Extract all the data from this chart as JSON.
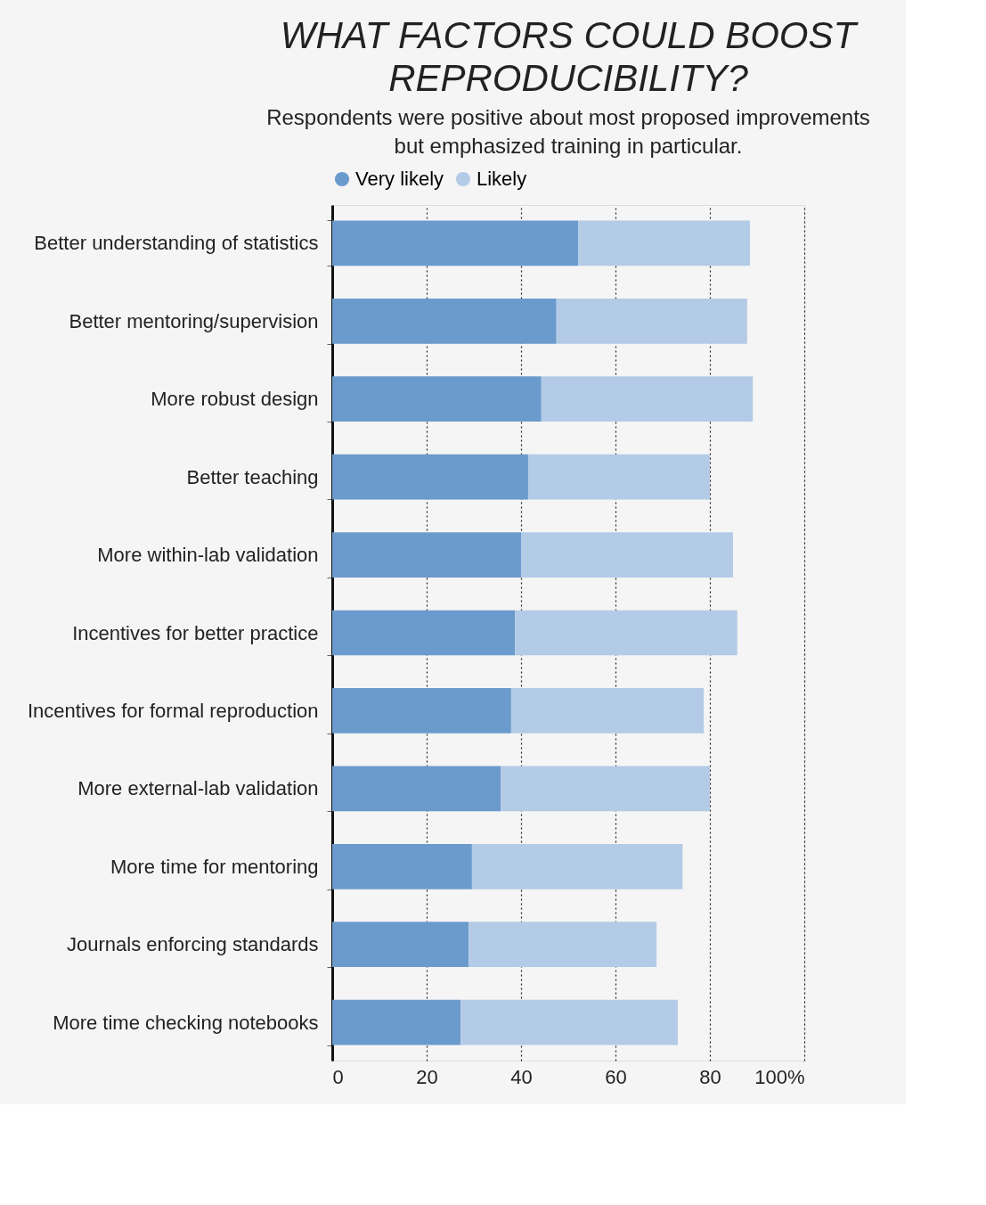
{
  "chart_data": {
    "type": "bar",
    "orientation": "horizontal",
    "stacked": true,
    "title": "WHAT FACTORS COULD BOOST\nREPRODUCIBILITY?",
    "subtitle": "Respondents were positive about most proposed improvements\nbut emphasized training in particular.",
    "categories": [
      "Better understanding\nof statistics",
      "Better mentoring/supervision",
      "More robust design",
      "Better teaching",
      "More within-lab validation",
      "Incentives for better practice",
      "Incentives for formal\nreproduction",
      "More external-lab validation",
      "More time for mentoring",
      "Journals enforcing standards",
      "More time checking\nnotebooks"
    ],
    "series": [
      {
        "name": "Very likely",
        "color": "#6b9bcd",
        "values": [
          52.1,
          47.5,
          44.3,
          41.5,
          40,
          38.7,
          37.9,
          35.7,
          29.6,
          28.9,
          27.2
        ]
      },
      {
        "name": "Likely",
        "color": "#b3cbe6",
        "values": [
          36.4,
          40.4,
          44.8,
          38.5,
          44.9,
          47.1,
          40.8,
          44.3,
          44.6,
          39.8,
          46
        ]
      }
    ],
    "xlim": [
      0,
      100
    ],
    "xticks": [
      0,
      20,
      40,
      60,
      80,
      {
        "value": 100,
        "label": "100%"
      }
    ],
    "grid": "x",
    "legend": "top"
  }
}
